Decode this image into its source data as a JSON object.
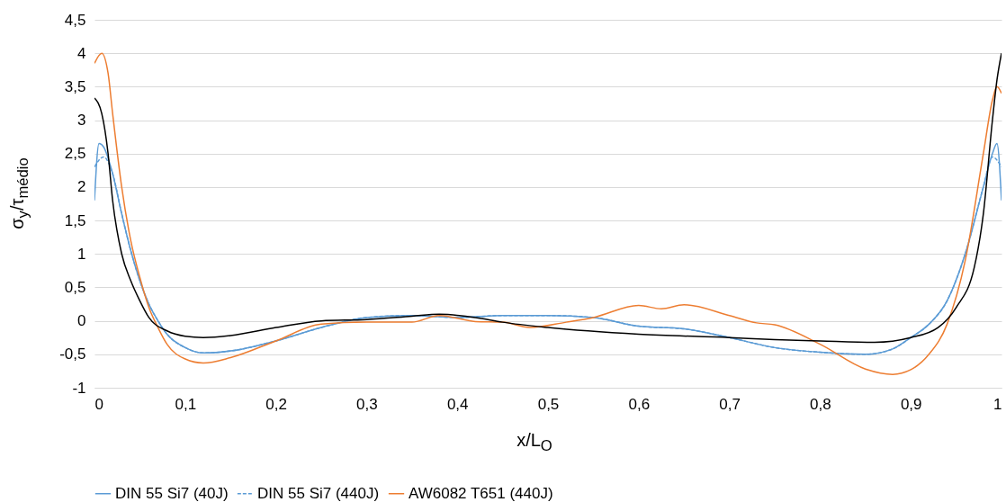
{
  "chart_data": {
    "type": "line",
    "xlabel": "x/L$_{O}$",
    "ylabel": "σ$_{y}$/τ$_{médio}$",
    "xlim": [
      0,
      1
    ],
    "ylim": [
      -1,
      4.5
    ],
    "xticks": [
      {
        "value": 0,
        "label": "0"
      },
      {
        "value": 0.1,
        "label": "0,1"
      },
      {
        "value": 0.2,
        "label": "0,2"
      },
      {
        "value": 0.3,
        "label": "0,3"
      },
      {
        "value": 0.4,
        "label": "0,4"
      },
      {
        "value": 0.5,
        "label": "0,5"
      },
      {
        "value": 0.6,
        "label": "0,6"
      },
      {
        "value": 0.7,
        "label": "0,7"
      },
      {
        "value": 0.8,
        "label": "0,8"
      },
      {
        "value": 0.9,
        "label": "0,9"
      },
      {
        "value": 1,
        "label": "1"
      }
    ],
    "yticks": [
      {
        "value": -1,
        "label": "-1"
      },
      {
        "value": -0.5,
        "label": "-0,5"
      },
      {
        "value": 0,
        "label": "0"
      },
      {
        "value": 0.5,
        "label": "0,5"
      },
      {
        "value": 1,
        "label": "1"
      },
      {
        "value": 1.5,
        "label": "1,5"
      },
      {
        "value": 2,
        "label": "2"
      },
      {
        "value": 2.5,
        "label": "2,5"
      },
      {
        "value": 3,
        "label": "3"
      },
      {
        "value": 3.5,
        "label": "3,5"
      },
      {
        "value": 4,
        "label": "4"
      },
      {
        "value": 4.5,
        "label": "4,5"
      }
    ],
    "grid": "y",
    "legend": "bottom",
    "series": [
      {
        "name": "DIN 55 Si7 (40J)",
        "color": "#5b9bd5",
        "line_style": "solid",
        "x": [
          0,
          0.005,
          0.01,
          0.02,
          0.03,
          0.04,
          0.05,
          0.06,
          0.07,
          0.08,
          0.1,
          0.12,
          0.15,
          0.2,
          0.25,
          0.3,
          0.35,
          0.4,
          0.45,
          0.5,
          0.55,
          0.6,
          0.65,
          0.7,
          0.75,
          0.8,
          0.85,
          0.88,
          0.9,
          0.92,
          0.94,
          0.96,
          0.98,
          0.99,
          0.995,
          1
        ],
        "values": [
          1.8,
          2.65,
          2.6,
          2.2,
          1.6,
          1.05,
          0.6,
          0.25,
          0,
          -0.2,
          -0.4,
          -0.48,
          -0.45,
          -0.3,
          -0.1,
          0.05,
          0.08,
          0.05,
          0.08,
          0.08,
          0.05,
          -0.08,
          -0.12,
          -0.25,
          -0.4,
          -0.47,
          -0.5,
          -0.42,
          -0.25,
          -0.05,
          0.3,
          1,
          2,
          2.5,
          2.65,
          1.8
        ]
      },
      {
        "name": "DIN 55 Si7 (440J)",
        "color": "#5b9bd5",
        "line_style": "dashed",
        "x": [
          0,
          0.01,
          0.02,
          0.03,
          0.04,
          0.05,
          0.06,
          0.07,
          0.08,
          0.1,
          0.12,
          0.15,
          0.2,
          0.25,
          0.3,
          0.35,
          0.4,
          0.45,
          0.5,
          0.55,
          0.6,
          0.65,
          0.7,
          0.75,
          0.8,
          0.85,
          0.88,
          0.9,
          0.92,
          0.94,
          0.96,
          0.98,
          0.99,
          1
        ],
        "values": [
          2.3,
          2.45,
          2.2,
          1.6,
          1.05,
          0.6,
          0.25,
          0,
          -0.2,
          -0.4,
          -0.48,
          -0.45,
          -0.3,
          -0.1,
          0.05,
          0.08,
          0.05,
          0.08,
          0.08,
          0.05,
          -0.08,
          -0.12,
          -0.25,
          -0.4,
          -0.47,
          -0.5,
          -0.42,
          -0.25,
          -0.05,
          0.3,
          1,
          2,
          2.45,
          2.3
        ]
      },
      {
        "name": "AW6082 T651 (440J)",
        "color": "#ed7d31",
        "line_style": "solid",
        "x": [
          0,
          0.008,
          0.015,
          0.02,
          0.03,
          0.04,
          0.05,
          0.06,
          0.07,
          0.08,
          0.1,
          0.12,
          0.15,
          0.2,
          0.25,
          0.3,
          0.35,
          0.38,
          0.42,
          0.45,
          0.48,
          0.52,
          0.55,
          0.6,
          0.625,
          0.65,
          0.7,
          0.73,
          0.75,
          0.8,
          0.85,
          0.88,
          0.9,
          0.92,
          0.94,
          0.96,
          0.98,
          0.99,
          0.995,
          1
        ],
        "values": [
          3.85,
          4,
          3.7,
          3.1,
          2,
          1.2,
          0.65,
          0.2,
          -0.1,
          -0.35,
          -0.57,
          -0.63,
          -0.55,
          -0.3,
          -0.05,
          -0.02,
          -0.02,
          0.08,
          -0.01,
          -0.02,
          -0.1,
          -0.02,
          0.05,
          0.23,
          0.18,
          0.24,
          0.08,
          -0.03,
          -0.06,
          -0.35,
          -0.72,
          -0.8,
          -0.73,
          -0.5,
          -0.05,
          0.9,
          2.5,
          3.3,
          3.5,
          3.4
        ]
      },
      {
        "color": "#000000",
        "line_style": "solid",
        "x": [
          0,
          0.008,
          0.015,
          0.02,
          0.03,
          0.04,
          0.05,
          0.06,
          0.08,
          0.1,
          0.12,
          0.15,
          0.2,
          0.25,
          0.3,
          0.35,
          0.38,
          0.42,
          0.45,
          0.5,
          0.6,
          0.7,
          0.75,
          0.8,
          0.86,
          0.9,
          0.93,
          0.95,
          0.97,
          0.98,
          0.99,
          0.995,
          1
        ],
        "values": [
          3.33,
          3.1,
          2.5,
          1.8,
          1,
          0.6,
          0.3,
          0.05,
          -0.15,
          -0.23,
          -0.25,
          -0.22,
          -0.1,
          0,
          0.02,
          0.07,
          0.1,
          0.05,
          -0.02,
          -0.1,
          -0.2,
          -0.25,
          -0.28,
          -0.3,
          -0.32,
          -0.25,
          -0.1,
          0.2,
          0.8,
          1.6,
          3,
          3.6,
          4
        ]
      }
    ]
  }
}
